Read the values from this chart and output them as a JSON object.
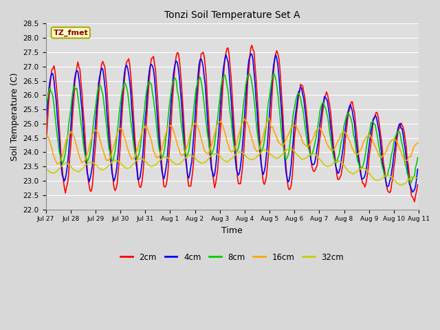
{
  "title": "Tonzi Soil Temperature Set A",
  "xlabel": "Time",
  "ylabel": "Soil Temperature (C)",
  "ylim": [
    22.0,
    28.5
  ],
  "annotation": "TZ_fmet",
  "colors": {
    "2cm": "#FF0000",
    "4cm": "#0000FF",
    "8cm": "#00CC00",
    "16cm": "#FFA500",
    "32cm": "#CCCC00"
  },
  "legend_labels": [
    "2cm",
    "4cm",
    "8cm",
    "16cm",
    "32cm"
  ],
  "linewidth": 1.2,
  "n_days": 15,
  "points_per_day": 24,
  "yticks": [
    22.0,
    22.5,
    23.0,
    23.5,
    24.0,
    24.5,
    25.0,
    25.5,
    26.0,
    26.5,
    27.0,
    27.5,
    28.0,
    28.5
  ]
}
